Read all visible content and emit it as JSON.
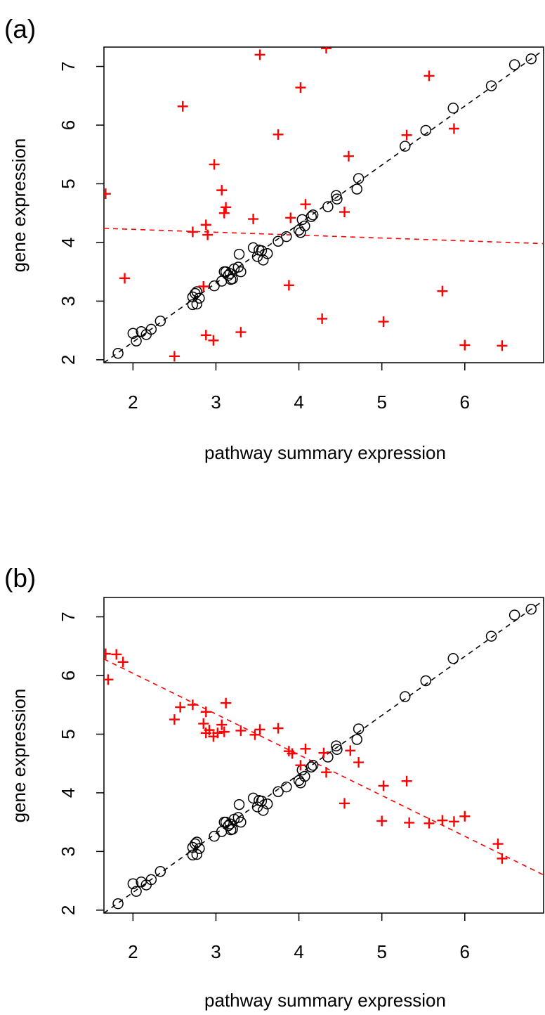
{
  "colors": {
    "black": "#000000",
    "red": "#ff0000"
  },
  "chart_data": [
    {
      "panel": "(a)",
      "type": "scatter",
      "xlabel": "pathway summary expression",
      "ylabel": "gene expression",
      "xlim": [
        1.65,
        6.95
      ],
      "ylim": [
        1.95,
        7.33
      ],
      "x_ticks": [
        "2",
        "3",
        "4",
        "5",
        "6"
      ],
      "y_ticks": [
        "2",
        "3",
        "4",
        "5",
        "6",
        "7"
      ],
      "series": [
        {
          "marker": "open-circle",
          "color": "#000000",
          "points": [
            [
              1.82,
              2.11
            ],
            [
              2.0,
              2.45
            ],
            [
              2.04,
              2.32
            ],
            [
              2.1,
              2.48
            ],
            [
              2.16,
              2.43
            ],
            [
              2.22,
              2.52
            ],
            [
              2.33,
              2.66
            ],
            [
              2.72,
              2.94
            ],
            [
              2.72,
              3.07
            ],
            [
              2.75,
              3.13
            ],
            [
              2.77,
              3.16
            ],
            [
              2.77,
              2.95
            ],
            [
              2.8,
              3.05
            ],
            [
              2.98,
              3.26
            ],
            [
              3.07,
              3.34
            ],
            [
              3.1,
              3.5
            ],
            [
              3.12,
              3.5
            ],
            [
              3.15,
              3.44
            ],
            [
              3.17,
              3.47
            ],
            [
              3.18,
              3.37
            ],
            [
              3.2,
              3.38
            ],
            [
              3.22,
              3.55
            ],
            [
              3.27,
              3.58
            ],
            [
              3.28,
              3.8
            ],
            [
              3.3,
              3.5
            ],
            [
              3.45,
              3.91
            ],
            [
              3.5,
              3.76
            ],
            [
              3.52,
              3.87
            ],
            [
              3.55,
              3.86
            ],
            [
              3.57,
              3.7
            ],
            [
              3.62,
              3.81
            ],
            [
              3.75,
              4.02
            ],
            [
              3.85,
              4.1
            ],
            [
              4.0,
              4.21
            ],
            [
              4.02,
              4.17
            ],
            [
              4.04,
              4.39
            ],
            [
              4.07,
              4.28
            ],
            [
              4.15,
              4.44
            ],
            [
              4.17,
              4.47
            ],
            [
              4.35,
              4.61
            ],
            [
              4.45,
              4.8
            ],
            [
              4.46,
              4.74
            ],
            [
              4.7,
              4.91
            ],
            [
              4.72,
              5.09
            ],
            [
              5.28,
              5.64
            ],
            [
              5.53,
              5.91
            ],
            [
              5.86,
              6.29
            ],
            [
              6.32,
              6.67
            ],
            [
              6.6,
              7.03
            ],
            [
              6.8,
              7.13
            ]
          ]
        },
        {
          "marker": "plus",
          "color": "#ff0000",
          "points": [
            [
              1.67,
              4.83
            ],
            [
              1.9,
              3.39
            ],
            [
              2.5,
              2.06
            ],
            [
              2.6,
              6.32
            ],
            [
              2.72,
              4.18
            ],
            [
              2.85,
              3.25
            ],
            [
              2.88,
              4.3
            ],
            [
              2.88,
              2.42
            ],
            [
              2.9,
              4.13
            ],
            [
              2.97,
              2.33
            ],
            [
              2.98,
              5.33
            ],
            [
              3.07,
              4.89
            ],
            [
              3.1,
              4.5
            ],
            [
              3.12,
              4.6
            ],
            [
              3.3,
              2.47
            ],
            [
              3.45,
              4.4
            ],
            [
              3.53,
              7.2
            ],
            [
              3.75,
              5.84
            ],
            [
              3.88,
              3.27
            ],
            [
              3.9,
              4.42
            ],
            [
              4.02,
              6.64
            ],
            [
              4.08,
              4.65
            ],
            [
              4.28,
              2.7
            ],
            [
              4.33,
              7.31
            ],
            [
              4.55,
              4.52
            ],
            [
              4.6,
              5.47
            ],
            [
              5.02,
              2.65
            ],
            [
              5.3,
              5.83
            ],
            [
              5.57,
              6.84
            ],
            [
              5.73,
              3.17
            ],
            [
              5.87,
              5.94
            ],
            [
              6.0,
              2.25
            ],
            [
              6.45,
              2.24
            ]
          ]
        }
      ],
      "lines": [
        {
          "color": "#000000",
          "dash": "dashed",
          "from": [
            1.65,
            1.95
          ],
          "to": [
            6.95,
            7.28
          ]
        },
        {
          "color": "#ff0000",
          "dash": "dashed",
          "from": [
            1.65,
            4.24
          ],
          "to": [
            6.95,
            3.98
          ]
        }
      ]
    },
    {
      "panel": "(b)",
      "type": "scatter",
      "xlabel": "pathway summary expression",
      "ylabel": "gene expression",
      "xlim": [
        1.65,
        6.95
      ],
      "ylim": [
        1.95,
        7.33
      ],
      "x_ticks": [
        "2",
        "3",
        "4",
        "5",
        "6"
      ],
      "y_ticks": [
        "2",
        "3",
        "4",
        "5",
        "6",
        "7"
      ],
      "series": [
        {
          "marker": "open-circle",
          "color": "#000000",
          "points": [
            [
              1.82,
              2.11
            ],
            [
              2.0,
              2.45
            ],
            [
              2.04,
              2.32
            ],
            [
              2.1,
              2.48
            ],
            [
              2.16,
              2.43
            ],
            [
              2.22,
              2.52
            ],
            [
              2.33,
              2.66
            ],
            [
              2.72,
              2.94
            ],
            [
              2.72,
              3.07
            ],
            [
              2.75,
              3.13
            ],
            [
              2.77,
              3.16
            ],
            [
              2.77,
              2.95
            ],
            [
              2.8,
              3.05
            ],
            [
              2.98,
              3.26
            ],
            [
              3.07,
              3.34
            ],
            [
              3.1,
              3.5
            ],
            [
              3.12,
              3.5
            ],
            [
              3.15,
              3.44
            ],
            [
              3.17,
              3.47
            ],
            [
              3.18,
              3.37
            ],
            [
              3.2,
              3.38
            ],
            [
              3.22,
              3.55
            ],
            [
              3.27,
              3.58
            ],
            [
              3.28,
              3.8
            ],
            [
              3.3,
              3.5
            ],
            [
              3.45,
              3.91
            ],
            [
              3.5,
              3.76
            ],
            [
              3.52,
              3.87
            ],
            [
              3.55,
              3.86
            ],
            [
              3.57,
              3.7
            ],
            [
              3.62,
              3.81
            ],
            [
              3.75,
              4.02
            ],
            [
              3.85,
              4.1
            ],
            [
              4.0,
              4.21
            ],
            [
              4.02,
              4.17
            ],
            [
              4.04,
              4.39
            ],
            [
              4.07,
              4.28
            ],
            [
              4.15,
              4.44
            ],
            [
              4.17,
              4.47
            ],
            [
              4.35,
              4.61
            ],
            [
              4.45,
              4.8
            ],
            [
              4.46,
              4.74
            ],
            [
              4.7,
              4.91
            ],
            [
              4.72,
              5.09
            ],
            [
              5.28,
              5.64
            ],
            [
              5.53,
              5.91
            ],
            [
              5.86,
              6.29
            ],
            [
              6.32,
              6.67
            ],
            [
              6.6,
              7.03
            ],
            [
              6.8,
              7.13
            ]
          ]
        },
        {
          "marker": "plus",
          "color": "#ff0000",
          "points": [
            [
              1.67,
              6.37
            ],
            [
              1.7,
              5.93
            ],
            [
              1.8,
              6.36
            ],
            [
              1.88,
              6.23
            ],
            [
              2.5,
              5.25
            ],
            [
              2.57,
              5.46
            ],
            [
              2.72,
              5.5
            ],
            [
              2.85,
              5.18
            ],
            [
              2.88,
              5.02
            ],
            [
              2.88,
              5.38
            ],
            [
              2.92,
              5.07
            ],
            [
              2.97,
              4.96
            ],
            [
              3.02,
              5.02
            ],
            [
              3.07,
              5.16
            ],
            [
              3.1,
              5.04
            ],
            [
              3.12,
              5.53
            ],
            [
              3.3,
              5.06
            ],
            [
              3.47,
              4.99
            ],
            [
              3.53,
              5.08
            ],
            [
              3.75,
              5.1
            ],
            [
              3.88,
              4.71
            ],
            [
              3.92,
              4.67
            ],
            [
              4.02,
              4.47
            ],
            [
              4.08,
              4.75
            ],
            [
              4.3,
              4.68
            ],
            [
              4.33,
              4.35
            ],
            [
              4.55,
              3.82
            ],
            [
              4.62,
              4.72
            ],
            [
              4.72,
              4.52
            ],
            [
              5.0,
              3.52
            ],
            [
              5.02,
              4.12
            ],
            [
              5.3,
              4.2
            ],
            [
              5.33,
              3.49
            ],
            [
              5.57,
              3.48
            ],
            [
              5.73,
              3.53
            ],
            [
              5.87,
              3.51
            ],
            [
              6.0,
              3.6
            ],
            [
              6.4,
              3.13
            ],
            [
              6.45,
              2.88
            ]
          ]
        }
      ],
      "lines": [
        {
          "color": "#000000",
          "dash": "dashed",
          "from": [
            1.65,
            1.95
          ],
          "to": [
            6.95,
            7.28
          ]
        },
        {
          "color": "#ff0000",
          "dash": "dashed",
          "from": [
            1.65,
            6.28
          ],
          "to": [
            6.95,
            2.6
          ]
        }
      ]
    }
  ]
}
